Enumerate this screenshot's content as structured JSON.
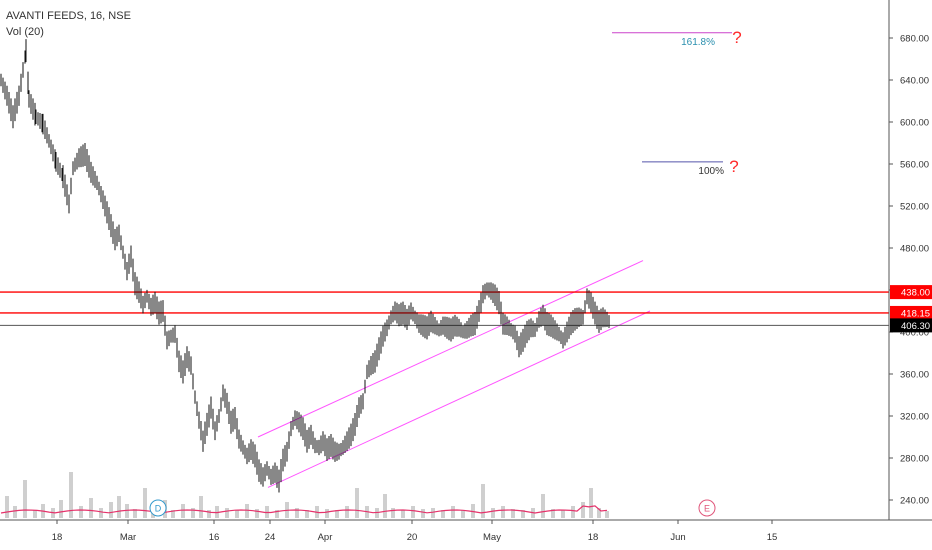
{
  "chart_data": {
    "type": "candlestick",
    "title": "AVANTI FEEDS, 16, NSE",
    "indicator": "Vol (20)",
    "ylim": [
      210,
      720
    ],
    "y_ticks": [
      "680.00",
      "640.00",
      "600.00",
      "560.00",
      "520.00",
      "480.00",
      "440.00",
      "400.00",
      "360.00",
      "320.00",
      "280.00",
      "240.00"
    ],
    "x_ticks": [
      "18",
      "Mar",
      "16",
      "24",
      "Apr",
      "20",
      "May",
      "18",
      "Jun",
      "15"
    ],
    "price_labels": [
      {
        "text": "438.00",
        "value": 438.0,
        "style": "red"
      },
      {
        "text": "418.15",
        "value": 418.15,
        "style": "red"
      },
      {
        "text": "406.30",
        "value": 406.3,
        "style": "black"
      }
    ],
    "horizontal_lines": [
      {
        "value": 438.0,
        "color": "#ff0000"
      },
      {
        "value": 418.15,
        "color": "#ff0000"
      },
      {
        "value": 406.3,
        "color": "#555555"
      }
    ],
    "fib_levels": [
      {
        "label": "161.8%",
        "value": 685,
        "color": "#cc44cc",
        "label_color": "#2a8fae"
      },
      {
        "label": "100%",
        "value": 562,
        "color": "#5555aa",
        "label_color": "#333333"
      }
    ],
    "question_marks": [
      "?",
      "?"
    ],
    "channel_color": "#ff55ff",
    "event_markers": [
      {
        "text": "D",
        "color": "#3399cc"
      },
      {
        "text": "E",
        "color": "#e0557a"
      }
    ],
    "price_path": [
      [
        0,
        640
      ],
      [
        6,
        625
      ],
      [
        12,
        605
      ],
      [
        18,
        625
      ],
      [
        25,
        668
      ],
      [
        28,
        622
      ],
      [
        35,
        605
      ],
      [
        42,
        598
      ],
      [
        48,
        582
      ],
      [
        55,
        562
      ],
      [
        62,
        548
      ],
      [
        68,
        522
      ],
      [
        72,
        556
      ],
      [
        78,
        566
      ],
      [
        84,
        569
      ],
      [
        90,
        552
      ],
      [
        96,
        542
      ],
      [
        102,
        526
      ],
      [
        108,
        508
      ],
      [
        114,
        488
      ],
      [
        118,
        494
      ],
      [
        122,
        476
      ],
      [
        126,
        458
      ],
      [
        130,
        472
      ],
      [
        134,
        446
      ],
      [
        138,
        438
      ],
      [
        142,
        426
      ],
      [
        146,
        434
      ],
      [
        150,
        424
      ],
      [
        154,
        428
      ],
      [
        158,
        418
      ],
      [
        162,
        420
      ],
      [
        166,
        392
      ],
      [
        170,
        396
      ],
      [
        174,
        398
      ],
      [
        178,
        372
      ],
      [
        182,
        362
      ],
      [
        186,
        376
      ],
      [
        190,
        368
      ],
      [
        194,
        338
      ],
      [
        198,
        316
      ],
      [
        202,
        296
      ],
      [
        206,
        312
      ],
      [
        210,
        328
      ],
      [
        214,
        306
      ],
      [
        218,
        320
      ],
      [
        222,
        342
      ],
      [
        226,
        332
      ],
      [
        230,
        314
      ],
      [
        234,
        318
      ],
      [
        238,
        298
      ],
      [
        242,
        290
      ],
      [
        246,
        282
      ],
      [
        250,
        288
      ],
      [
        254,
        282
      ],
      [
        258,
        268
      ],
      [
        262,
        262
      ],
      [
        266,
        270
      ],
      [
        270,
        262
      ],
      [
        274,
        266
      ],
      [
        278,
        258
      ],
      [
        282,
        278
      ],
      [
        286,
        286
      ],
      [
        290,
        308
      ],
      [
        294,
        318
      ],
      [
        298,
        314
      ],
      [
        302,
        308
      ],
      [
        306,
        296
      ],
      [
        310,
        302
      ],
      [
        314,
        292
      ],
      [
        318,
        290
      ],
      [
        322,
        296
      ],
      [
        326,
        288
      ],
      [
        330,
        292
      ],
      [
        334,
        286
      ],
      [
        338,
        286
      ],
      [
        342,
        290
      ],
      [
        346,
        296
      ],
      [
        350,
        302
      ],
      [
        354,
        312
      ],
      [
        358,
        328
      ],
      [
        362,
        334
      ],
      [
        366,
        362
      ],
      [
        370,
        368
      ],
      [
        374,
        372
      ],
      [
        378,
        384
      ],
      [
        382,
        396
      ],
      [
        386,
        404
      ],
      [
        390,
        414
      ],
      [
        394,
        420
      ],
      [
        398,
        416
      ],
      [
        402,
        418
      ],
      [
        406,
        412
      ],
      [
        410,
        420
      ],
      [
        414,
        414
      ],
      [
        418,
        408
      ],
      [
        422,
        406
      ],
      [
        426,
        404
      ],
      [
        430,
        410
      ],
      [
        434,
        406
      ],
      [
        438,
        402
      ],
      [
        442,
        406
      ],
      [
        446,
        404
      ],
      [
        450,
        402
      ],
      [
        454,
        406
      ],
      [
        458,
        404
      ],
      [
        462,
        400
      ],
      [
        466,
        402
      ],
      [
        470,
        406
      ],
      [
        474,
        408
      ],
      [
        478,
        420
      ],
      [
        482,
        436
      ],
      [
        486,
        441
      ],
      [
        490,
        439
      ],
      [
        494,
        435
      ],
      [
        498,
        428
      ],
      [
        502,
        408
      ],
      [
        506,
        406
      ],
      [
        510,
        402
      ],
      [
        514,
        398
      ],
      [
        518,
        386
      ],
      [
        522,
        392
      ],
      [
        526,
        400
      ],
      [
        530,
        404
      ],
      [
        534,
        402
      ],
      [
        538,
        412
      ],
      [
        542,
        416
      ],
      [
        546,
        408
      ],
      [
        550,
        406
      ],
      [
        554,
        402
      ],
      [
        558,
        398
      ],
      [
        562,
        392
      ],
      [
        566,
        400
      ],
      [
        570,
        408
      ],
      [
        574,
        412
      ],
      [
        578,
        414
      ],
      [
        582,
        414
      ],
      [
        586,
        434
      ],
      [
        590,
        428
      ],
      [
        594,
        418
      ],
      [
        598,
        410
      ],
      [
        602,
        414
      ],
      [
        606,
        412
      ],
      [
        610,
        408
      ]
    ],
    "volume_bars": [
      [
        6,
        22
      ],
      [
        14,
        12
      ],
      [
        24,
        38
      ],
      [
        34,
        8
      ],
      [
        42,
        14
      ],
      [
        52,
        10
      ],
      [
        60,
        18
      ],
      [
        70,
        46
      ],
      [
        80,
        12
      ],
      [
        90,
        20
      ],
      [
        100,
        10
      ],
      [
        110,
        16
      ],
      [
        118,
        22
      ],
      [
        126,
        14
      ],
      [
        134,
        9
      ],
      [
        144,
        30
      ],
      [
        152,
        12
      ],
      [
        164,
        18
      ],
      [
        172,
        8
      ],
      [
        182,
        14
      ],
      [
        192,
        10
      ],
      [
        200,
        22
      ],
      [
        208,
        8
      ],
      [
        216,
        12
      ],
      [
        226,
        10
      ],
      [
        236,
        8
      ],
      [
        246,
        14
      ],
      [
        256,
        9
      ],
      [
        266,
        12
      ],
      [
        276,
        8
      ],
      [
        286,
        16
      ],
      [
        296,
        10
      ],
      [
        306,
        8
      ],
      [
        316,
        12
      ],
      [
        326,
        9
      ],
      [
        336,
        8
      ],
      [
        346,
        12
      ],
      [
        356,
        30
      ],
      [
        366,
        12
      ],
      [
        376,
        10
      ],
      [
        384,
        24
      ],
      [
        392,
        10
      ],
      [
        402,
        8
      ],
      [
        412,
        12
      ],
      [
        422,
        9
      ],
      [
        432,
        10
      ],
      [
        442,
        8
      ],
      [
        452,
        12
      ],
      [
        462,
        8
      ],
      [
        472,
        14
      ],
      [
        482,
        34
      ],
      [
        492,
        10
      ],
      [
        502,
        12
      ],
      [
        512,
        9
      ],
      [
        522,
        8
      ],
      [
        532,
        10
      ],
      [
        542,
        24
      ],
      [
        552,
        9
      ],
      [
        562,
        8
      ],
      [
        572,
        12
      ],
      [
        582,
        16
      ],
      [
        590,
        30
      ],
      [
        598,
        10
      ],
      [
        606,
        7
      ]
    ]
  }
}
